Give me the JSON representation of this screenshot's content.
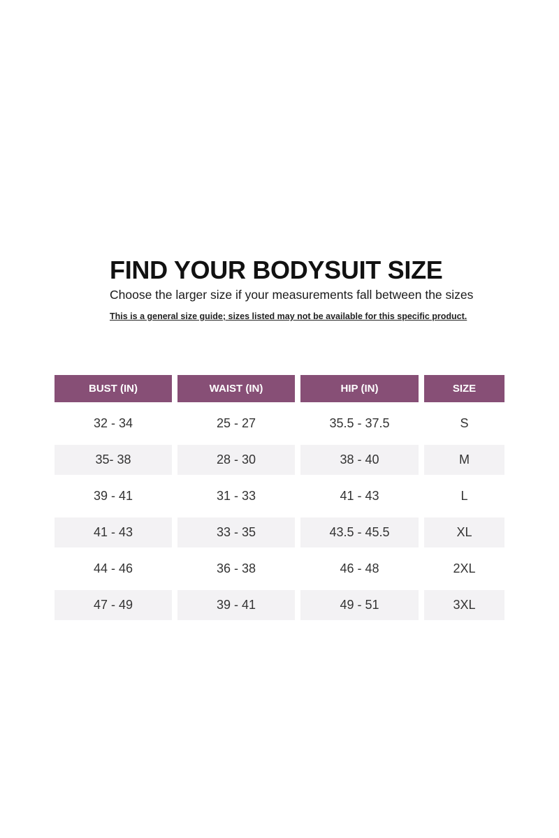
{
  "title": "FIND YOUR BODYSUIT SIZE",
  "subtitle": "Choose the larger size if your measurements fall between the sizes",
  "note": "This is a general size guide; sizes listed may not be available for this specific product.",
  "colors": {
    "header_bg": "#874f76",
    "shaded_row_bg": "#f3f2f4"
  },
  "table": {
    "headers": [
      "BUST (IN)",
      "WAIST (IN)",
      "HIP (IN)",
      "SIZE"
    ],
    "rows": [
      [
        "32 - 34",
        "25 - 27",
        "35.5 - 37.5",
        "S"
      ],
      [
        "35- 38",
        "28 - 30",
        "38 - 40",
        "M"
      ],
      [
        "39 - 41",
        "31 - 33",
        "41 - 43",
        "L"
      ],
      [
        "41 - 43",
        "33 - 35",
        "43.5 - 45.5",
        "XL"
      ],
      [
        "44 - 46",
        "36 - 38",
        "46 - 48",
        "2XL"
      ],
      [
        "47 - 49",
        "39 - 41",
        "49 - 51",
        "3XL"
      ]
    ]
  }
}
